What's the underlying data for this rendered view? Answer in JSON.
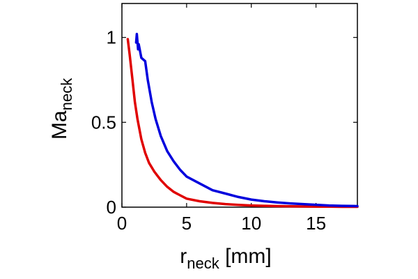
{
  "chart_data": {
    "type": "line",
    "title": "",
    "xlabel": {
      "main": "r",
      "sub": "neck",
      "unit": " [mm]"
    },
    "ylabel": {
      "main": "Ma",
      "sub": "neck"
    },
    "xlim": [
      0,
      18.2
    ],
    "ylim": [
      0,
      1.2
    ],
    "xticks": [
      0,
      5,
      10,
      15
    ],
    "yticks": [
      0,
      0.5,
      1
    ],
    "xtick_labels": [
      "0",
      "5",
      "10",
      "15"
    ],
    "ytick_labels": [
      "0",
      "0.5",
      "1"
    ],
    "grid": false,
    "legend": false,
    "series": [
      {
        "color": "#e00000",
        "x": [
          0.45,
          0.6,
          0.8,
          1.0,
          1.2,
          1.5,
          1.8,
          2.1,
          2.5,
          3.0,
          3.5,
          4.0,
          4.5,
          5.0,
          6.0,
          7.0,
          8.0,
          9.0,
          10.0,
          11.0,
          12.0,
          13.0,
          14.0,
          15.0,
          16.0,
          17.0,
          18.2
        ],
        "y": [
          0.99,
          0.9,
          0.76,
          0.62,
          0.52,
          0.4,
          0.32,
          0.26,
          0.21,
          0.16,
          0.12,
          0.09,
          0.07,
          0.05,
          0.035,
          0.025,
          0.018,
          0.013,
          0.01,
          0.008,
          0.006,
          0.005,
          0.004,
          0.003,
          0.003,
          0.002,
          0.002
        ]
      },
      {
        "color": "#0000dd",
        "x": [
          1.1,
          1.15,
          1.25,
          1.3,
          1.5,
          1.8,
          2.0,
          2.3,
          2.6,
          3.0,
          3.5,
          4.0,
          4.5,
          5.0,
          6.0,
          7.0,
          8.0,
          9.0,
          10.0,
          11.0,
          12.0,
          13.0,
          14.0,
          15.0,
          16.0,
          17.0,
          18.2
        ],
        "y": [
          0.97,
          1.02,
          0.93,
          0.96,
          0.88,
          0.86,
          0.75,
          0.62,
          0.52,
          0.42,
          0.33,
          0.27,
          0.22,
          0.18,
          0.14,
          0.1,
          0.08,
          0.06,
          0.045,
          0.035,
          0.028,
          0.022,
          0.018,
          0.014,
          0.01,
          0.008,
          0.006
        ]
      }
    ]
  }
}
